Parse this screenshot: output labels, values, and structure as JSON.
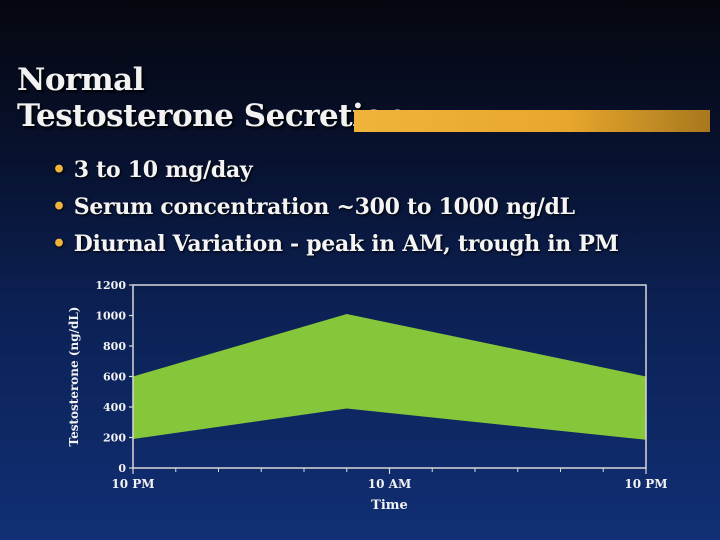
{
  "slide": {
    "title_line1": "Normal",
    "title_line2": "Testosterone Secretion",
    "bullets": [
      "3 to 10 mg/day",
      "Serum concentration ~300 to 1000 ng/dL",
      "Diurnal Variation - peak in AM, trough in PM"
    ],
    "accent_color": "#f0b43a"
  },
  "chart_data": {
    "type": "area",
    "title": "",
    "xlabel": "Time",
    "ylabel": "Testosterone (ng/dL)",
    "ylim": [
      0,
      1200
    ],
    "yticks": [
      0,
      200,
      400,
      600,
      800,
      1000,
      1200
    ],
    "xlim": [
      0,
      24
    ],
    "xticks": [
      {
        "value": 0,
        "label": "10 PM"
      },
      {
        "value": 12,
        "label": "10 AM"
      },
      {
        "value": 24,
        "label": "10 PM"
      }
    ],
    "x_minor_ticks": [
      2,
      4,
      6,
      8,
      10,
      14,
      16,
      18,
      20,
      22
    ],
    "band": {
      "x": [
        0,
        10,
        24
      ],
      "upper": [
        600,
        1010,
        600
      ],
      "lower": [
        190,
        390,
        185
      ]
    },
    "band_color": "#86c63a",
    "axis_color": "#d8d8d8",
    "grid": false
  }
}
